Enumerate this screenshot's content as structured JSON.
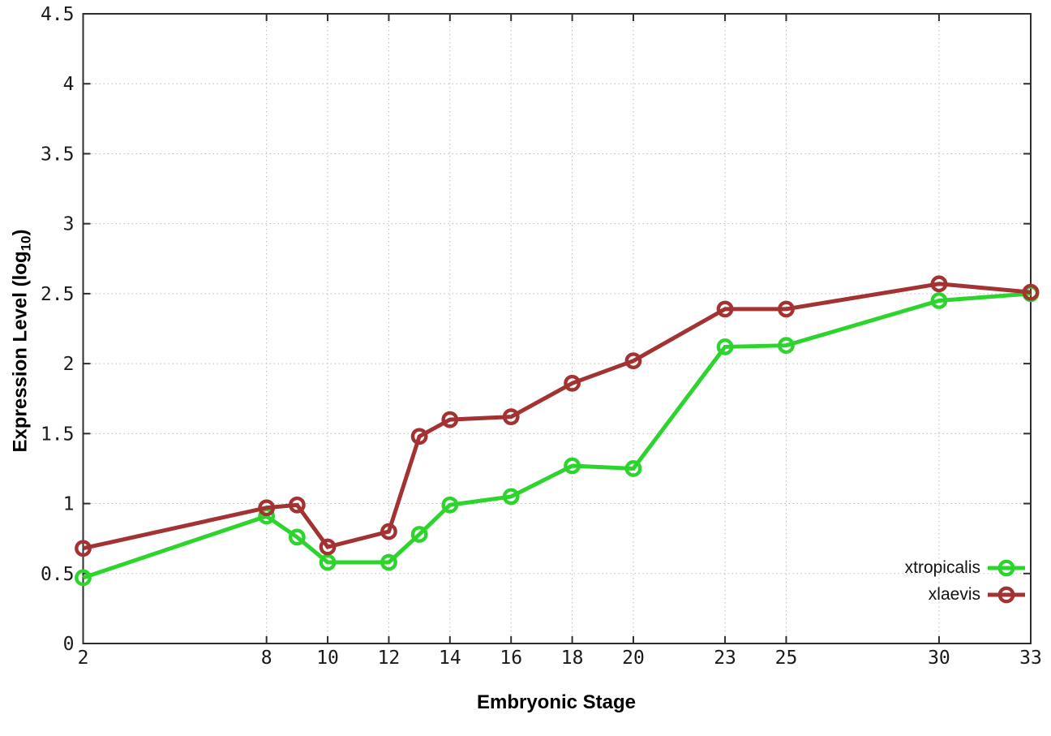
{
  "chart_data": {
    "type": "line",
    "title": "",
    "xlabel": "Embryonic Stage",
    "ylabel": "Expression Level (log10)",
    "ylabel_parts": {
      "main": "Expression Level (log",
      "sub": "10",
      "end": ")"
    },
    "x": [
      2,
      8,
      9,
      10,
      12,
      13,
      14,
      16,
      18,
      20,
      23,
      25,
      30,
      33
    ],
    "series": [
      {
        "name": "xtropicalis",
        "color": "#2dd42d",
        "values": [
          0.47,
          0.91,
          0.76,
          0.58,
          0.58,
          0.78,
          0.99,
          1.05,
          1.27,
          1.25,
          2.12,
          2.13,
          2.45,
          2.5
        ]
      },
      {
        "name": "xlaevis",
        "color": "#a33232",
        "values": [
          0.68,
          0.97,
          0.99,
          0.69,
          0.8,
          1.48,
          1.6,
          1.62,
          1.86,
          2.02,
          2.39,
          2.39,
          2.57,
          2.51
        ]
      }
    ],
    "xlim": [
      2,
      33
    ],
    "ylim": [
      0,
      4.5
    ],
    "xticks": [
      2,
      8,
      10,
      12,
      14,
      16,
      18,
      20,
      23,
      25,
      30,
      33
    ],
    "xtick_labels": [
      "2",
      "8",
      "10",
      "12",
      "14",
      "16",
      "18",
      "20",
      "23",
      "25",
      "30",
      "33"
    ],
    "yticks": [
      0,
      0.5,
      1,
      1.5,
      2,
      2.5,
      3,
      3.5,
      4,
      4.5
    ],
    "ytick_labels": [
      "0",
      "0.5",
      "1",
      "1.5",
      "2",
      "2.5",
      "3",
      "3.5",
      "4",
      "4.5"
    ],
    "grid": true,
    "legend_position": "inside-bottom-right",
    "marker": "open-circle",
    "style": {
      "background": "#ffffff",
      "border_color": "#2e2e2e",
      "grid_color": "#bcbcbc",
      "tick_text_color": "#1a1a1a"
    }
  }
}
